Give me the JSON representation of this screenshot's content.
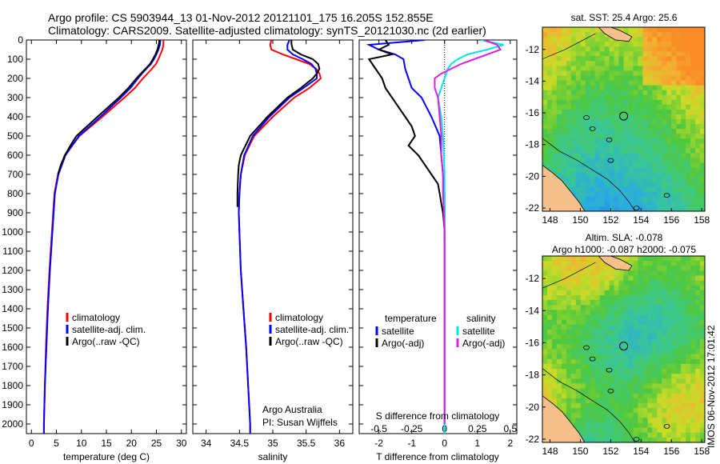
{
  "header": {
    "line1": "Argo profile: CS 5903944_13 01-Nov-2012 20121101_175 16.205S 152.855E",
    "line2": "Climatology: CARS2009. Satellite-adjusted climatology: synTS_20121030.nc (2d earlier)"
  },
  "colors": {
    "climatology": "#ff0000",
    "satellite": "#0000ff",
    "argo": "#000000",
    "sal_sat": "#00e5e5",
    "sal_argo": "#e020e0"
  },
  "depth_axis": {
    "min": 0,
    "max": 2050,
    "ticks": [
      0,
      100,
      200,
      300,
      400,
      500,
      600,
      700,
      800,
      900,
      1000,
      1100,
      1200,
      1300,
      1400,
      1500,
      1600,
      1700,
      1800,
      1900,
      2000
    ]
  },
  "chart_data": [
    {
      "type": "line",
      "id": "temperature",
      "xlabel": "temperature (deg C)",
      "xlim": [
        -1,
        31
      ],
      "xticks": [
        0,
        5,
        10,
        15,
        20,
        25,
        30
      ],
      "ylim": [
        2050,
        0
      ],
      "legend": [
        "climatology",
        "satellite-adj. clim.",
        "Argo(..raw -QC)"
      ],
      "series": [
        {
          "name": "climatology",
          "depth": [
            0,
            25,
            50,
            75,
            100,
            125,
            150,
            175,
            200,
            250,
            300,
            400,
            500,
            600,
            700,
            800,
            1000,
            1200,
            1400,
            1600,
            1800,
            2000,
            2050
          ],
          "values": [
            26.4,
            26.4,
            26.2,
            25.8,
            25.4,
            24.9,
            24.1,
            23.2,
            22.3,
            20.7,
            18.6,
            14.2,
            9.6,
            6.7,
            5.3,
            4.6,
            4.1,
            3.6,
            3.2,
            2.9,
            2.7,
            2.5,
            2.5
          ]
        },
        {
          "name": "satellite-adj. clim.",
          "depth": [
            0,
            25,
            50,
            75,
            100,
            125,
            150,
            175,
            200,
            250,
            300,
            400,
            500,
            600,
            700,
            800,
            1000,
            1200,
            1400,
            1600,
            1800,
            2000,
            2050
          ],
          "values": [
            25.8,
            25.7,
            25.4,
            25.0,
            24.5,
            23.9,
            23.0,
            22.1,
            21.3,
            19.8,
            17.9,
            13.8,
            9.5,
            6.8,
            5.4,
            4.7,
            4.2,
            3.7,
            3.3,
            3.0,
            2.7,
            2.5,
            2.5
          ]
        },
        {
          "name": "Argo(..raw -QC)",
          "depth": [
            0,
            20,
            50,
            75,
            100,
            125,
            150,
            175,
            200,
            250,
            300,
            400,
            500,
            550,
            600,
            650,
            700
          ],
          "values": [
            25.6,
            25.5,
            25.2,
            24.8,
            24.3,
            23.7,
            22.8,
            21.9,
            21.0,
            19.4,
            17.5,
            13.2,
            9.0,
            7.8,
            6.7,
            5.9,
            5.3
          ]
        }
      ]
    },
    {
      "type": "line",
      "id": "salinity",
      "xlabel": "salinity",
      "xlim": [
        33.8,
        36.2
      ],
      "xticks": [
        34,
        34.5,
        35,
        35.5,
        36
      ],
      "xtick_labels": [
        "34",
        "34.5",
        "35",
        "35.5",
        "36"
      ],
      "ylim": [
        2050,
        0
      ],
      "legend": [
        "climatology",
        "satellite-adj. clim.",
        "Argo(..raw -QC)"
      ],
      "annotation": [
        "Argo Australia",
        "PI: Susan Wijffels"
      ],
      "series": [
        {
          "name": "climatology",
          "depth": [
            0,
            25,
            50,
            75,
            100,
            125,
            150,
            175,
            200,
            250,
            300,
            400,
            500,
            600,
            700,
            800,
            900,
            1000,
            1200,
            1400,
            1600,
            1800,
            2000,
            2050
          ],
          "values": [
            34.98,
            34.96,
            34.98,
            35.15,
            35.35,
            35.55,
            35.65,
            35.7,
            35.72,
            35.55,
            35.32,
            35.0,
            34.72,
            34.58,
            34.52,
            34.5,
            34.49,
            34.5,
            34.52,
            34.56,
            34.6,
            34.63,
            34.66,
            34.66
          ]
        },
        {
          "name": "satellite-adj. clim.",
          "depth": [
            0,
            25,
            50,
            75,
            100,
            125,
            150,
            175,
            200,
            250,
            300,
            400,
            500,
            600,
            700,
            800,
            900,
            1000,
            1200,
            1400,
            1600,
            1800,
            2000,
            2050
          ],
          "values": [
            35.25,
            35.22,
            35.22,
            35.3,
            35.45,
            35.58,
            35.64,
            35.66,
            35.66,
            35.46,
            35.25,
            34.95,
            34.7,
            34.57,
            34.52,
            34.5,
            34.49,
            34.5,
            34.52,
            34.56,
            34.6,
            34.63,
            34.66,
            34.66
          ]
        },
        {
          "name": "Argo(..raw -QC)",
          "depth": [
            0,
            20,
            50,
            75,
            100,
            125,
            150,
            175,
            200,
            250,
            300,
            400,
            500,
            600,
            650,
            700,
            800,
            870
          ],
          "values": [
            35.28,
            35.28,
            35.3,
            35.42,
            35.6,
            35.68,
            35.7,
            35.66,
            35.6,
            35.42,
            35.22,
            34.92,
            34.66,
            34.52,
            34.49,
            34.48,
            34.47,
            34.47
          ]
        }
      ]
    },
    {
      "type": "line",
      "id": "difference",
      "xlabel": "T difference from climatology",
      "xlabel_top": "S difference from climatology",
      "xlim": [
        -2.6,
        2.2
      ],
      "xticks": [
        -2,
        -1,
        0,
        1,
        2
      ],
      "top_ticks": [
        -0.5,
        -0.25,
        0,
        0.25,
        0.5
      ],
      "top_tick_labels": [
        "-0.5",
        "-0.25",
        "0",
        "0.25",
        "0.5"
      ],
      "top_tick_scale": 4,
      "ylim": [
        2050,
        0
      ],
      "legend_headers": [
        "temperature",
        "salinity"
      ],
      "legend": [
        "satellite",
        "Argo(-adj)",
        "satellite",
        "Argo(-adj)"
      ],
      "series": [
        {
          "name": "temperature satellite",
          "depth": [
            0,
            25,
            50,
            75,
            100,
            150,
            200,
            250,
            300,
            400,
            500,
            600,
            700,
            800,
            1000,
            1500,
            2000,
            2050
          ],
          "values": [
            -0.6,
            -2.3,
            -2.0,
            -1.5,
            -1.25,
            -1.2,
            -1.1,
            -1.0,
            -0.7,
            -0.4,
            -0.15,
            -0.1,
            -0.05,
            0,
            0,
            0,
            0,
            0
          ]
        },
        {
          "name": "temperature Argo(-adj)",
          "depth": [
            0,
            25,
            50,
            75,
            100,
            150,
            200,
            250,
            300,
            350,
            400,
            450,
            500,
            550,
            600,
            650,
            700,
            750,
            800,
            850,
            900,
            950,
            1000,
            1050
          ],
          "values": [
            -1.8,
            -1.7,
            -2.0,
            -1.6,
            -2.3,
            -2.1,
            -1.9,
            -1.8,
            -1.6,
            -1.4,
            -1.2,
            -1.0,
            -0.9,
            -1.1,
            -0.8,
            -0.6,
            -0.4,
            -0.2,
            -0.15,
            -0.1,
            -0.05,
            -0.02,
            0,
            0
          ]
        },
        {
          "name": "salinity satellite",
          "depth": [
            0,
            25,
            50,
            75,
            100,
            125,
            150,
            175,
            200,
            250,
            300,
            400,
            500,
            600,
            700,
            800,
            1000,
            1500,
            2000,
            2050
          ],
          "values": [
            1.1,
            1.8,
            1.3,
            0.7,
            0.4,
            0.2,
            0.1,
            0.05,
            0.0,
            -0.1,
            -0.2,
            -0.1,
            -0.05,
            -0.02,
            0,
            0,
            0,
            0,
            0,
            0
          ]
        },
        {
          "name": "salinity Argo(-adj)",
          "depth": [
            0,
            25,
            50,
            75,
            100,
            125,
            150,
            175,
            200,
            250,
            300,
            400,
            500,
            600,
            700,
            800,
            900,
            1000,
            1500,
            2000
          ],
          "values": [
            1.2,
            1.6,
            1.7,
            1.3,
            0.9,
            0.5,
            0.2,
            -0.1,
            -0.3,
            -0.3,
            -0.2,
            -0.15,
            -0.1,
            -0.1,
            -0.05,
            -0.05,
            -0.02,
            0,
            0,
            0
          ]
        }
      ]
    },
    {
      "type": "heatmap",
      "id": "sst-map",
      "title": "sat. SST: 25.4  Argo: 25.6",
      "xticks": [
        148,
        150,
        152,
        154,
        156,
        158
      ],
      "yticks": [
        -12,
        -14,
        -16,
        -18,
        -20,
        -22
      ],
      "xlim": [
        147.5,
        158.2
      ],
      "ylim": [
        -22.2,
        -10.6
      ],
      "argo_position": [
        152.855,
        -16.205
      ]
    },
    {
      "type": "heatmap",
      "id": "sla-map",
      "title_line1": "Altim. SLA: -0.078",
      "title_line2": "Argo h1000: -0.087 h2000: -0.075",
      "xticks": [
        148,
        150,
        152,
        154,
        156,
        158
      ],
      "yticks": [
        -12,
        -14,
        -16,
        -18,
        -20,
        -22
      ],
      "xlim": [
        147.5,
        158.2
      ],
      "ylim": [
        -22.2,
        -10.6
      ],
      "argo_position": [
        152.855,
        -16.205
      ]
    }
  ],
  "footer": {
    "stamp": "IMOS 06-Nov-2012 17:01:42"
  }
}
